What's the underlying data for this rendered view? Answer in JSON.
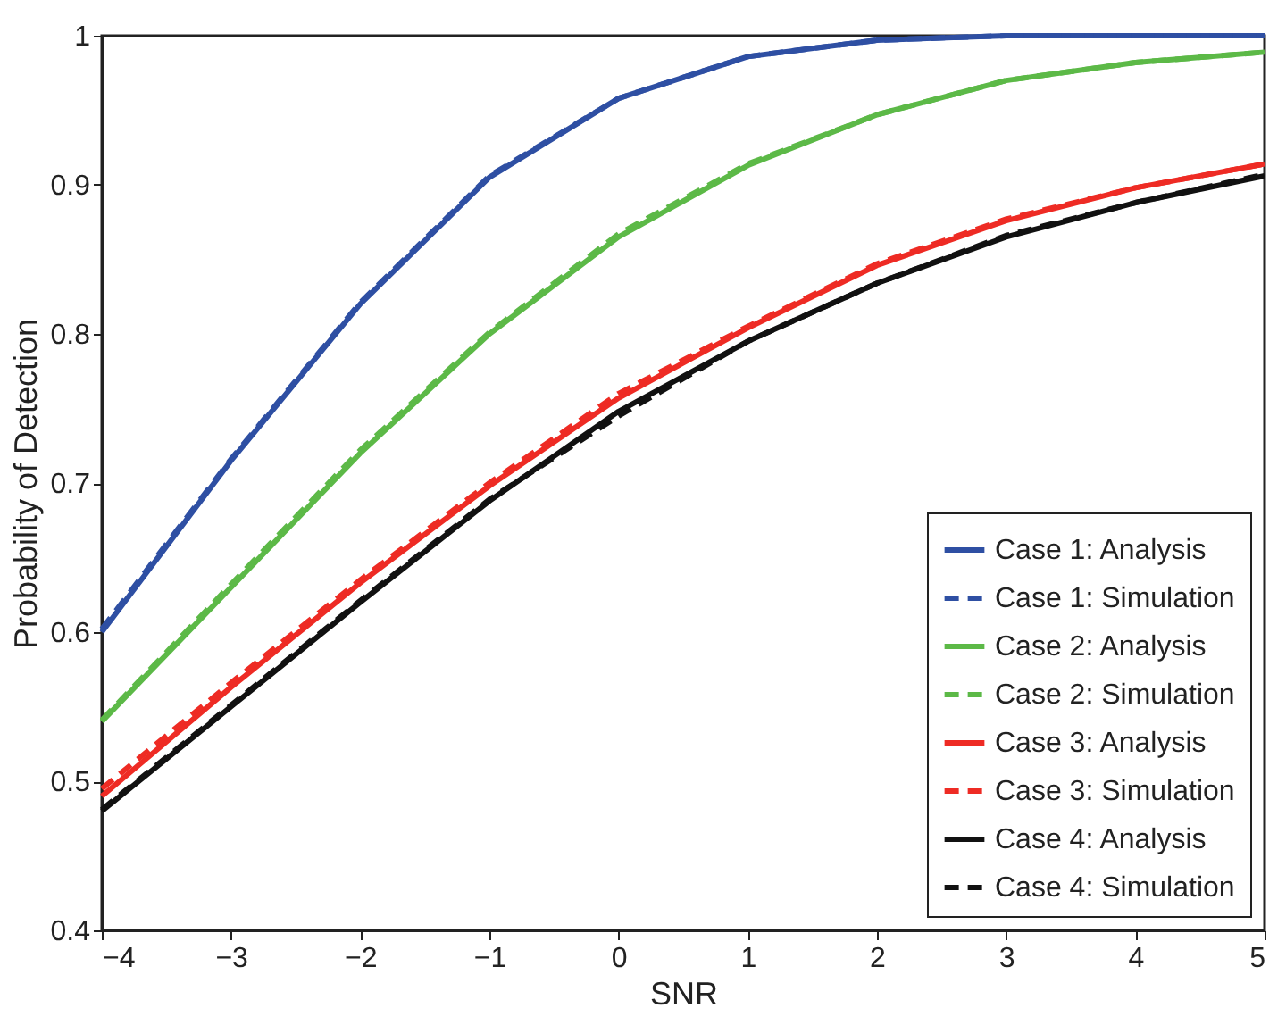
{
  "chart_data": {
    "type": "line",
    "xlabel": "SNR",
    "ylabel": "Probability of Detection",
    "x": [
      -4,
      -3,
      -2,
      -1,
      0,
      1,
      2,
      3,
      4,
      5
    ],
    "xlim": [
      -4,
      5
    ],
    "xticks": [
      -4,
      -3,
      -2,
      -1,
      0,
      1,
      2,
      3,
      4,
      5
    ],
    "ylim": [
      0.4,
      1
    ],
    "yticks": [
      0.4,
      0.5,
      0.6,
      0.7,
      0.8,
      0.9,
      {
        "value": 1,
        "label": "1"
      }
    ],
    "grid": false,
    "legend": "bottom right",
    "marker": "none",
    "series": [
      {
        "name": "Case 1: Analysis",
        "color": "#2e4fa3",
        "line_style": "solid",
        "values": [
          0.6,
          0.715,
          0.82,
          0.905,
          0.958,
          0.986,
          0.997,
          1.0,
          1.0,
          1.0
        ]
      },
      {
        "name": "Case 1: Simulation",
        "color": "#2e4fa3",
        "line_style": "dashed",
        "values": [
          0.602,
          0.716,
          0.821,
          0.906,
          0.958,
          0.986,
          0.997,
          1.0,
          1.0,
          1.0
        ]
      },
      {
        "name": "Case 2: Analysis",
        "color": "#5cb947",
        "line_style": "solid",
        "values": [
          0.54,
          0.63,
          0.72,
          0.8,
          0.865,
          0.913,
          0.947,
          0.97,
          0.982,
          0.989
        ]
      },
      {
        "name": "Case 2: Simulation",
        "color": "#5cb947",
        "line_style": "dashed",
        "values": [
          0.541,
          0.632,
          0.722,
          0.801,
          0.867,
          0.914,
          0.947,
          0.97,
          0.982,
          0.989
        ]
      },
      {
        "name": "Case 3: Analysis",
        "color": "#ee2b24",
        "line_style": "solid",
        "values": [
          0.49,
          0.563,
          0.633,
          0.698,
          0.757,
          0.804,
          0.846,
          0.876,
          0.898,
          0.914
        ]
      },
      {
        "name": "Case 3: Simulation",
        "color": "#ee2b24",
        "line_style": "dashed",
        "values": [
          0.495,
          0.566,
          0.635,
          0.7,
          0.76,
          0.805,
          0.847,
          0.877,
          0.898,
          0.914
        ]
      },
      {
        "name": "Case 4: Analysis",
        "color": "#111111",
        "line_style": "solid",
        "values": [
          0.48,
          0.55,
          0.62,
          0.688,
          0.748,
          0.795,
          0.834,
          0.865,
          0.888,
          0.906
        ]
      },
      {
        "name": "Case 4: Simulation",
        "color": "#111111",
        "line_style": "dashed",
        "values": [
          0.481,
          0.551,
          0.621,
          0.689,
          0.745,
          0.795,
          0.834,
          0.866,
          0.888,
          0.907
        ]
      }
    ]
  }
}
